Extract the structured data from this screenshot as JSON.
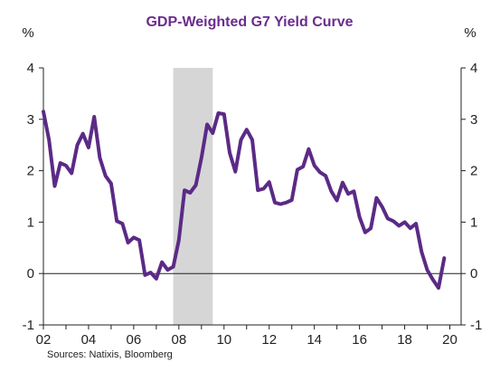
{
  "chart_data": {
    "type": "line",
    "title": "GDP-Weighted G7 Yield Curve",
    "ylabel_left": "%",
    "ylabel_right": "%",
    "xlabel": "",
    "xlim": [
      2002,
      2020.5
    ],
    "ylim": [
      -1,
      4
    ],
    "yticks": [
      "-1",
      "0",
      "1",
      "2",
      "3",
      "4"
    ],
    "xticks": [
      "02",
      "04",
      "06",
      "08",
      "10",
      "12",
      "14",
      "16",
      "18",
      "20"
    ],
    "grid": false,
    "legend": "none",
    "shaded_period": [
      2007.75,
      2009.5
    ],
    "shade_color": "#d6d6d6",
    "zero_line": true,
    "source": "Sources:  Natixis, Bloomberg",
    "series": [
      {
        "color": "#5b2a86",
        "x": [
          2002.0,
          2002.25,
          2002.5,
          2002.75,
          2003.0,
          2003.25,
          2003.5,
          2003.75,
          2004.0,
          2004.25,
          2004.5,
          2004.75,
          2005.0,
          2005.25,
          2005.5,
          2005.75,
          2006.0,
          2006.25,
          2006.5,
          2006.75,
          2007.0,
          2007.25,
          2007.5,
          2007.75,
          2008.0,
          2008.25,
          2008.5,
          2008.75,
          2009.0,
          2009.25,
          2009.5,
          2009.75,
          2010.0,
          2010.25,
          2010.5,
          2010.75,
          2011.0,
          2011.25,
          2011.5,
          2011.75,
          2012.0,
          2012.25,
          2012.5,
          2012.75,
          2013.0,
          2013.25,
          2013.5,
          2013.75,
          2014.0,
          2014.25,
          2014.5,
          2014.75,
          2015.0,
          2015.25,
          2015.5,
          2015.75,
          2016.0,
          2016.25,
          2016.5,
          2016.75,
          2017.0,
          2017.25,
          2017.5,
          2017.75,
          2018.0,
          2018.25,
          2018.5,
          2018.75,
          2019.0,
          2019.25,
          2019.5,
          2019.75
        ],
        "values": [
          3.15,
          2.6,
          1.7,
          2.15,
          2.1,
          1.95,
          2.5,
          2.72,
          2.45,
          3.05,
          2.25,
          1.9,
          1.75,
          1.02,
          0.97,
          0.6,
          0.7,
          0.65,
          -0.03,
          0.02,
          -0.1,
          0.22,
          0.07,
          0.13,
          0.65,
          1.62,
          1.57,
          1.72,
          2.25,
          2.9,
          2.73,
          3.12,
          3.1,
          2.35,
          1.98,
          2.6,
          2.8,
          2.6,
          1.62,
          1.65,
          1.78,
          1.38,
          1.35,
          1.38,
          1.43,
          2.02,
          2.08,
          2.42,
          2.1,
          1.97,
          1.9,
          1.6,
          1.42,
          1.77,
          1.55,
          1.6,
          1.1,
          0.8,
          0.88,
          1.47,
          1.3,
          1.07,
          1.02,
          0.93,
          1.0,
          0.88,
          0.97,
          0.42,
          0.07,
          -0.12,
          -0.28,
          0.3
        ]
      }
    ]
  }
}
